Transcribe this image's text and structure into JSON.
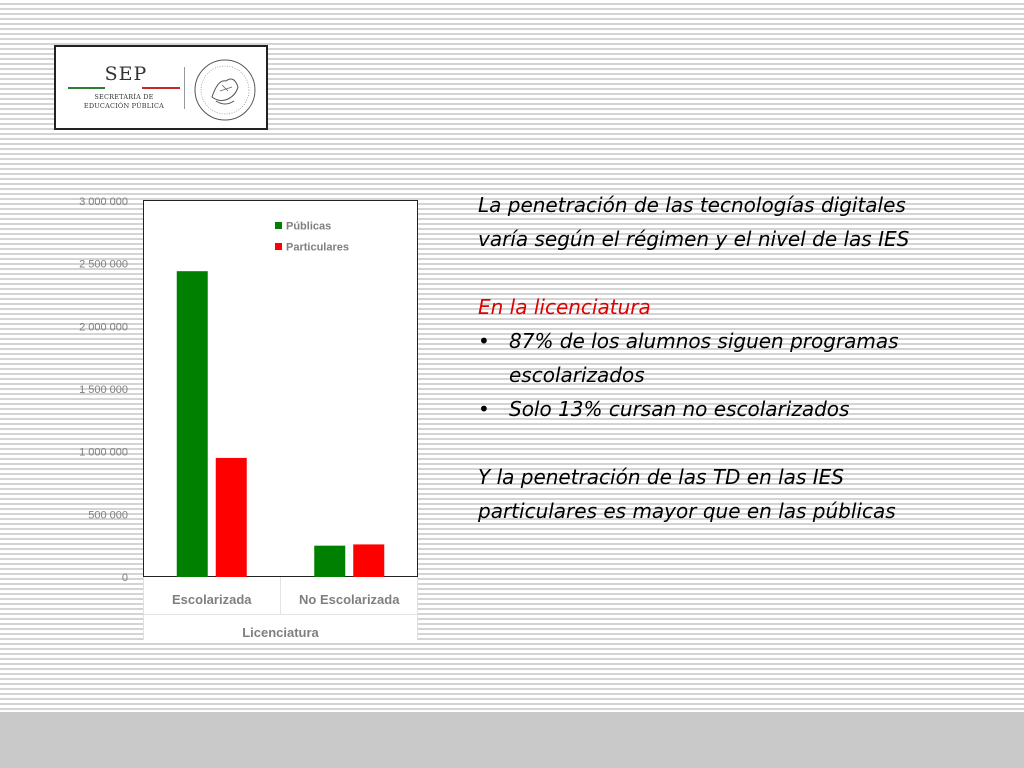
{
  "logo": {
    "acronym": "SEP",
    "line1": "SECRETARÍA DE",
    "line2": "EDUCACIÓN PÚBLICA",
    "seal_icon": "mexican-coat-of-arms-seal"
  },
  "chart_data": {
    "type": "bar",
    "categories": [
      "Escolarizada",
      "No Escolarizada"
    ],
    "group_label": "Licenciatura",
    "series": [
      {
        "name": "Públicas",
        "color": "#008000",
        "values": [
          2440000,
          250000
        ]
      },
      {
        "name": "Particulares",
        "color": "#ff0000",
        "values": [
          950000,
          260000
        ]
      }
    ],
    "ylim": [
      0,
      3000000
    ],
    "yticks": [
      0,
      500000,
      1000000,
      1500000,
      2000000,
      2500000,
      3000000
    ],
    "ytick_labels": [
      "0",
      "500 000",
      "1 000 000",
      "1 500 000",
      "2 000 000",
      "2 500 000",
      "3 000 000"
    ],
    "legend_position": "top-right",
    "grid": false
  },
  "text": {
    "intro": "La penetración de las tecnologías digitales varía  según el régimen y el nivel de las IES",
    "subheading": "En la licenciatura",
    "bullets": [
      "87% de los alumnos siguen programas escolarizados",
      "Solo 13% cursan no escolarizados"
    ],
    "closing": " Y la penetración de las TD en las IES particulares es mayor que en las públicas"
  },
  "colors": {
    "accent_red": "#e00000",
    "tick_text": "#7f7f7f"
  }
}
